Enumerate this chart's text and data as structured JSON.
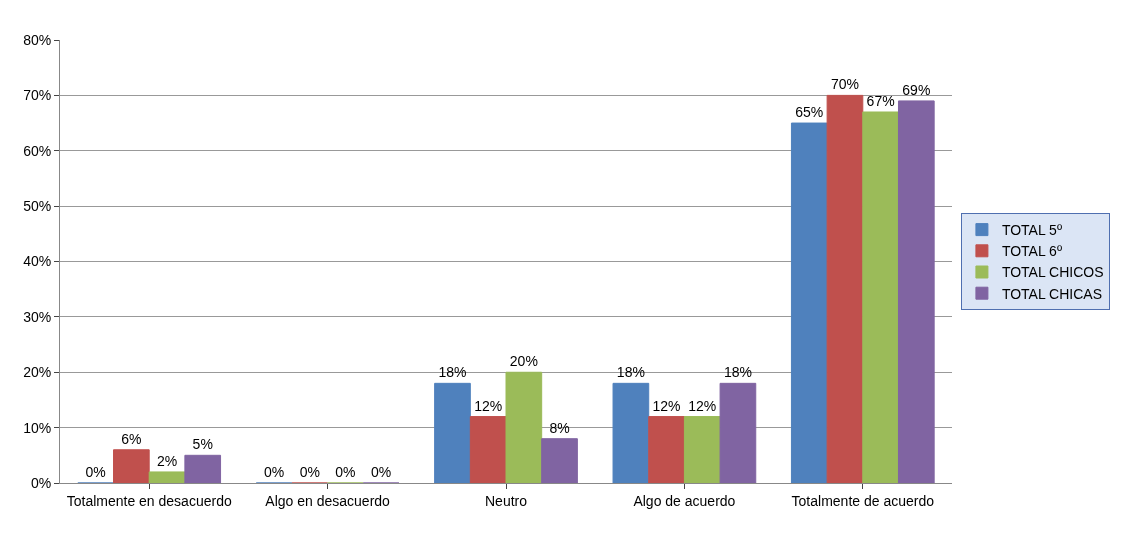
{
  "chart_data": {
    "type": "bar",
    "categories": [
      "Totalmente en desacuerdo",
      "Algo en desacuerdo",
      "Neutro",
      "Algo de acuerdo",
      "Totalmente de acuerdo"
    ],
    "series": [
      {
        "name": "TOTAL 5º",
        "color": "#4f81bd",
        "values": [
          0,
          0,
          18,
          18,
          65
        ],
        "value_labels": [
          "0%",
          "0%",
          "18%",
          "18%",
          "65%"
        ]
      },
      {
        "name": "TOTAL 6º",
        "color": "#c0504d",
        "values": [
          6,
          0,
          12,
          12,
          70
        ],
        "value_labels": [
          "6%",
          "0%",
          "12%",
          "12%",
          "70%"
        ]
      },
      {
        "name": "TOTAL CHICOS",
        "color": "#9bbb59",
        "values": [
          2,
          0,
          20,
          12,
          67
        ],
        "value_labels": [
          "2%",
          "0%",
          "20%",
          "12%",
          "67%"
        ]
      },
      {
        "name": "TOTAL CHICAS",
        "color": "#8064a2",
        "values": [
          5,
          0,
          8,
          18,
          69
        ],
        "value_labels": [
          "5%",
          "0%",
          "8%",
          "18%",
          "69%"
        ]
      }
    ],
    "ylim": [
      0,
      80
    ],
    "yticks": [
      {
        "value": 0,
        "label": "0%"
      },
      {
        "value": 10,
        "label": "10%"
      },
      {
        "value": 20,
        "label": "20%"
      },
      {
        "value": 30,
        "label": "30%"
      },
      {
        "value": 40,
        "label": "40%"
      },
      {
        "value": 50,
        "label": "50%"
      },
      {
        "value": 60,
        "label": "60%"
      },
      {
        "value": 70,
        "label": "70%"
      },
      {
        "value": 80,
        "label": "80%"
      }
    ],
    "grid": "y",
    "legend": "right"
  }
}
